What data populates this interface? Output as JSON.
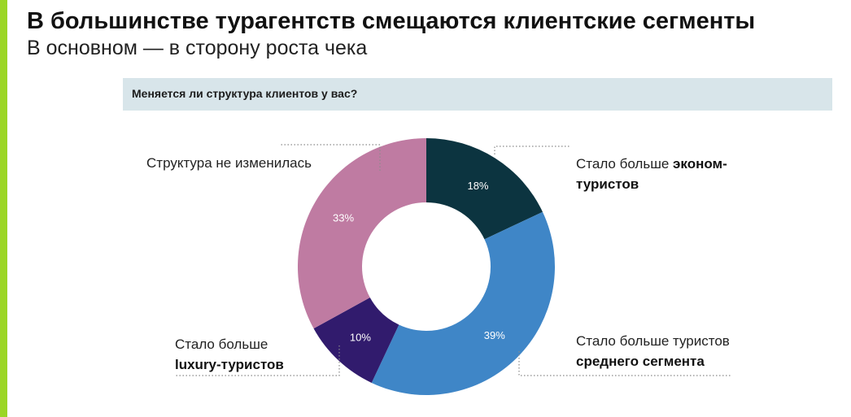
{
  "title": "В большинстве турагентств смещаются клиентские сегменты",
  "subtitle": "В основном — в сторону роста чека",
  "question": "Меняется ли структура клиентов у вас?",
  "colors": {
    "accent_bar": "#9bd626",
    "question_bg": "#d8e5ea"
  },
  "chart_data": {
    "type": "pie",
    "donut": true,
    "title": "Меняется ли структура клиентов у вас?",
    "categories": [
      "Стало больше эконом-туристов",
      "Стало больше туристов среднего сегмента",
      "Стало больше luxury-туристов",
      "Структура не изменилась"
    ],
    "values": [
      18,
      39,
      10,
      33
    ],
    "value_labels": [
      "18%",
      "39%",
      "10%",
      "33%"
    ],
    "colors": [
      "#0c3440",
      "#3f86c7",
      "#311b6d",
      "#bf7ba2"
    ],
    "legend": "callout labels"
  },
  "labels": {
    "econ_line1": "Стало больше ",
    "econ_bold1": "эконом-",
    "econ_bold2": "туристов",
    "mid_line1": "Стало больше туристов",
    "mid_bold": "среднего сегмента",
    "lux_line1": "Стало больше",
    "lux_bold": "luxury-туристов",
    "same": "Структура не изменилась"
  }
}
